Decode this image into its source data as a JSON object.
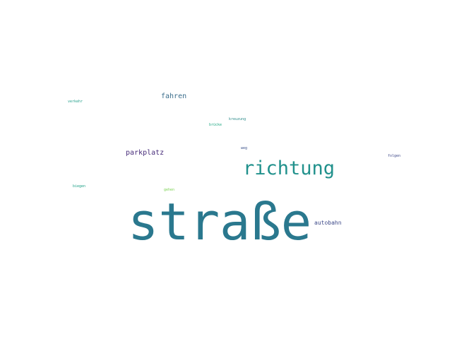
{
  "words": [
    {
      "id": "strasse",
      "text": "straße",
      "color": "#2a788e"
    },
    {
      "id": "richtung",
      "text": "richtung",
      "color": "#21918c"
    },
    {
      "id": "fahren",
      "text": "fahren",
      "color": "#3b6e8c"
    },
    {
      "id": "parkplatz",
      "text": "parkplatz",
      "color": "#472c7a"
    },
    {
      "id": "autobahn",
      "text": "autobahn",
      "color": "#3e4a89"
    },
    {
      "id": "kreuzung",
      "text": "kreuzung",
      "color": "#2c8b8a"
    },
    {
      "id": "bruecke",
      "text": "brücke",
      "color": "#22a884"
    },
    {
      "id": "weg",
      "text": "weg",
      "color": "#3b528b"
    },
    {
      "id": "folgen",
      "text": "folgen",
      "color": "#3e4989"
    },
    {
      "id": "verkehr",
      "text": "verkehr",
      "color": "#1f9e89"
    },
    {
      "id": "biegen",
      "text": "biegen",
      "color": "#1fa187"
    },
    {
      "id": "gehen",
      "text": "gehen",
      "color": "#7ad151"
    }
  ]
}
